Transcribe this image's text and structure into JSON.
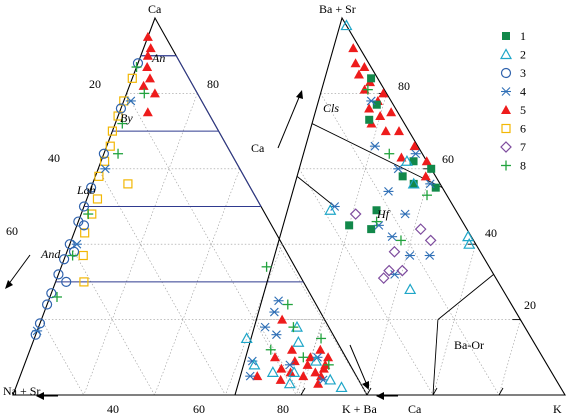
{
  "chart_data": [
    {
      "type": "scatter",
      "subtype": "ternary",
      "apices": {
        "top": "Ca",
        "left": "Na + Sr",
        "right": "K + Ba"
      },
      "ticks": [
        "20",
        "40",
        "60",
        "40",
        "60",
        "80",
        "80"
      ],
      "fields": [
        "An",
        "By",
        "Lab",
        "And"
      ],
      "points": [
        {
          "series": "5",
          "ca": 95,
          "na": 5,
          "k": 0
        },
        {
          "series": "5",
          "ca": 92,
          "na": 6,
          "k": 2
        },
        {
          "series": "5",
          "ca": 90,
          "na": 8,
          "k": 2
        },
        {
          "series": "5",
          "ca": 87,
          "na": 10,
          "k": 3
        },
        {
          "series": "5",
          "ca": 84,
          "na": 11,
          "k": 5
        },
        {
          "series": "5",
          "ca": 82,
          "na": 14,
          "k": 4
        },
        {
          "series": "5",
          "ca": 80,
          "na": 12,
          "k": 8
        },
        {
          "series": "5",
          "ca": 75,
          "na": 17,
          "k": 8
        },
        {
          "series": "5",
          "ca": 20,
          "na": 12,
          "k": 68
        },
        {
          "series": "5",
          "ca": 12,
          "na": 14,
          "k": 74
        },
        {
          "series": "5",
          "ca": 10,
          "na": 10,
          "k": 80
        },
        {
          "series": "5",
          "ca": 8,
          "na": 12,
          "k": 80
        },
        {
          "series": "5",
          "ca": 7,
          "na": 8,
          "k": 85
        },
        {
          "series": "5",
          "ca": 6,
          "na": 11,
          "k": 83
        },
        {
          "series": "5",
          "ca": 5,
          "na": 15,
          "k": 80
        },
        {
          "series": "5",
          "ca": 9,
          "na": 15,
          "k": 76
        },
        {
          "series": "5",
          "ca": 4,
          "na": 22,
          "k": 74
        },
        {
          "series": "5",
          "ca": 7,
          "na": 20,
          "k": 73
        },
        {
          "series": "5",
          "ca": 10,
          "na": 20,
          "k": 70
        },
        {
          "series": "5",
          "ca": 5,
          "na": 10,
          "k": 85
        },
        {
          "series": "5",
          "ca": 10,
          "na": 5,
          "k": 85
        },
        {
          "series": "5",
          "ca": 12,
          "na": 6,
          "k": 82
        },
        {
          "series": "5",
          "ca": 5,
          "na": 28,
          "k": 67
        },
        {
          "series": "5",
          "ca": 6,
          "na": 18,
          "k": 76
        },
        {
          "series": "5",
          "ca": 8,
          "na": 7,
          "k": 85
        },
        {
          "series": "5",
          "ca": 3,
          "na": 12,
          "k": 85
        },
        {
          "series": "6",
          "ca": 84,
          "na": 16,
          "k": 0
        },
        {
          "series": "6",
          "ca": 78,
          "na": 22,
          "k": 0
        },
        {
          "series": "6",
          "ca": 74,
          "na": 26,
          "k": 0
        },
        {
          "series": "6",
          "ca": 70,
          "na": 30,
          "k": 0
        },
        {
          "series": "6",
          "ca": 66,
          "na": 33,
          "k": 1
        },
        {
          "series": "6",
          "ca": 62,
          "na": 37,
          "k": 1
        },
        {
          "series": "6",
          "ca": 58,
          "na": 41,
          "k": 1
        },
        {
          "series": "6",
          "ca": 52,
          "na": 45,
          "k": 3
        },
        {
          "series": "6",
          "ca": 48,
          "na": 49,
          "k": 3
        },
        {
          "series": "6",
          "ca": 43,
          "na": 54,
          "k": 3
        },
        {
          "series": "6",
          "ca": 37,
          "na": 58,
          "k": 5
        },
        {
          "series": "6",
          "ca": 30,
          "na": 62,
          "k": 8
        },
        {
          "series": "6",
          "ca": 56,
          "na": 34,
          "k": 10
        },
        {
          "series": "3",
          "ca": 88,
          "na": 12,
          "k": 0
        },
        {
          "series": "3",
          "ca": 76,
          "na": 24,
          "k": 0
        },
        {
          "series": "3",
          "ca": 64,
          "na": 36,
          "k": 0
        },
        {
          "series": "3",
          "ca": 55,
          "na": 45,
          "k": 0
        },
        {
          "series": "3",
          "ca": 50,
          "na": 50,
          "k": 0
        },
        {
          "series": "3",
          "ca": 46,
          "na": 54,
          "k": 0
        },
        {
          "series": "3",
          "ca": 40,
          "na": 60,
          "k": 0
        },
        {
          "series": "3",
          "ca": 36,
          "na": 64,
          "k": 0
        },
        {
          "series": "3",
          "ca": 32,
          "na": 68,
          "k": 0
        },
        {
          "series": "3",
          "ca": 27,
          "na": 73,
          "k": 0
        },
        {
          "series": "3",
          "ca": 24,
          "na": 76,
          "k": 0
        },
        {
          "series": "3",
          "ca": 19,
          "na": 81,
          "k": 0
        },
        {
          "series": "3",
          "ca": 16,
          "na": 84,
          "k": 0
        },
        {
          "series": "3",
          "ca": 45,
          "na": 53,
          "k": 2
        },
        {
          "series": "3",
          "ca": 38,
          "na": 60,
          "k": 2
        },
        {
          "series": "3",
          "ca": 30,
          "na": 67,
          "k": 3
        },
        {
          "series": "4",
          "ca": 78,
          "na": 20,
          "k": 2
        },
        {
          "series": "4",
          "ca": 60,
          "na": 38,
          "k": 2
        },
        {
          "series": "4",
          "ca": 40,
          "na": 58,
          "k": 2
        },
        {
          "series": "4",
          "ca": 17,
          "na": 83,
          "k": 0
        },
        {
          "series": "4",
          "ca": 25,
          "na": 10,
          "k": 65
        },
        {
          "series": "4",
          "ca": 22,
          "na": 13,
          "k": 65
        },
        {
          "series": "4",
          "ca": 18,
          "na": 18,
          "k": 64
        },
        {
          "series": "4",
          "ca": 9,
          "na": 27,
          "k": 64
        },
        {
          "series": "4",
          "ca": 8,
          "na": 17,
          "k": 75
        },
        {
          "series": "4",
          "ca": 10,
          "na": 8,
          "k": 82
        },
        {
          "series": "4",
          "ca": 4,
          "na": 10,
          "k": 86
        },
        {
          "series": "4",
          "ca": 5,
          "na": 30,
          "k": 65
        },
        {
          "series": "4",
          "ca": 16,
          "na": 16,
          "k": 68
        },
        {
          "series": "2",
          "ca": 8,
          "na": 27,
          "k": 65
        },
        {
          "series": "2",
          "ca": 3,
          "na": 20,
          "k": 77
        },
        {
          "series": "2",
          "ca": 15,
          "na": 25,
          "k": 60
        },
        {
          "series": "2",
          "ca": 6,
          "na": 17,
          "k": 77
        },
        {
          "series": "2",
          "ca": 4,
          "na": 8,
          "k": 88
        },
        {
          "series": "2",
          "ca": 14,
          "na": 11,
          "k": 75
        },
        {
          "series": "2",
          "ca": 18,
          "na": 9,
          "k": 73
        },
        {
          "series": "2",
          "ca": 9,
          "na": 9,
          "k": 82
        },
        {
          "series": "2",
          "ca": 6,
          "na": 23,
          "k": 71
        },
        {
          "series": "2",
          "ca": 2,
          "na": 6,
          "k": 92
        },
        {
          "series": "8",
          "ca": 87,
          "na": 13,
          "k": 0
        },
        {
          "series": "8",
          "ca": 80,
          "na": 15,
          "k": 5
        },
        {
          "series": "8",
          "ca": 72,
          "na": 26,
          "k": 2
        },
        {
          "series": "8",
          "ca": 64,
          "na": 32,
          "k": 4
        },
        {
          "series": "8",
          "ca": 48,
          "na": 50,
          "k": 2
        },
        {
          "series": "8",
          "ca": 37,
          "na": 61,
          "k": 2
        },
        {
          "series": "8",
          "ca": 26,
          "na": 72,
          "k": 2
        },
        {
          "series": "8",
          "ca": 34,
          "na": 8,
          "k": 58
        },
        {
          "series": "8",
          "ca": 24,
          "na": 8,
          "k": 68
        },
        {
          "series": "8",
          "ca": 18,
          "na": 10,
          "k": 72
        },
        {
          "series": "8",
          "ca": 10,
          "na": 12,
          "k": 78
        },
        {
          "series": "8",
          "ca": 8,
          "na": 6,
          "k": 86
        },
        {
          "series": "8",
          "ca": 12,
          "na": 20,
          "k": 68
        },
        {
          "series": "8",
          "ca": 15,
          "na": 4,
          "k": 81
        }
      ]
    },
    {
      "type": "scatter",
      "subtype": "ternary",
      "apices": {
        "top": "Ba + Sr",
        "left": "Ca",
        "right": "K"
      },
      "ticks": [
        "80",
        "60",
        "40",
        "20"
      ],
      "fields": [
        "Cls",
        "Hf",
        "Ba-Or"
      ],
      "points": [
        {
          "series": "5",
          "ba": 92,
          "ca": 2,
          "k": 6
        },
        {
          "series": "5",
          "ba": 88,
          "ca": 4,
          "k": 8
        },
        {
          "series": "5",
          "ba": 85,
          "ca": 5,
          "k": 10
        },
        {
          "series": "5",
          "ba": 87,
          "ca": 2,
          "k": 11
        },
        {
          "series": "5",
          "ba": 83,
          "ca": 3,
          "k": 14
        },
        {
          "series": "5",
          "ba": 81,
          "ca": 6,
          "k": 13
        },
        {
          "series": "5",
          "ba": 80,
          "ca": 1,
          "k": 19
        },
        {
          "series": "5",
          "ba": 78,
          "ca": 4,
          "k": 18
        },
        {
          "series": "5",
          "ba": 76,
          "ca": 8,
          "k": 16
        },
        {
          "series": "5",
          "ba": 74,
          "ca": 6,
          "k": 20
        },
        {
          "series": "5",
          "ba": 75,
          "ca": 2,
          "k": 23
        },
        {
          "series": "5",
          "ba": 72,
          "ca": 10,
          "k": 18
        },
        {
          "series": "5",
          "ba": 70,
          "ca": 7,
          "k": 23
        },
        {
          "series": "5",
          "ba": 70,
          "ca": 3,
          "k": 27
        },
        {
          "series": "5",
          "ba": 66,
          "ca": 1,
          "k": 33
        },
        {
          "series": "5",
          "ba": 62,
          "ca": 0,
          "k": 38
        },
        {
          "series": "5",
          "ba": 58,
          "ca": 3,
          "k": 39
        },
        {
          "series": "5",
          "ba": 63,
          "ca": 7,
          "k": 30
        },
        {
          "series": "1",
          "ba": 84,
          "ca": 2,
          "k": 14
        },
        {
          "series": "1",
          "ba": 77,
          "ca": 5,
          "k": 18
        },
        {
          "series": "1",
          "ba": 73,
          "ca": 10,
          "k": 17
        },
        {
          "series": "1",
          "ba": 62,
          "ca": 4,
          "k": 34
        },
        {
          "series": "1",
          "ba": 58,
          "ca": 10,
          "k": 32
        },
        {
          "series": "1",
          "ba": 56,
          "ca": 8,
          "k": 36
        },
        {
          "series": "1",
          "ba": 60,
          "ca": 0,
          "k": 40
        },
        {
          "series": "1",
          "ba": 55,
          "ca": 2,
          "k": 43
        },
        {
          "series": "1",
          "ba": 49,
          "ca": 24,
          "k": 27
        },
        {
          "series": "1",
          "ba": 45,
          "ca": 35,
          "k": 20
        },
        {
          "series": "1",
          "ba": 44,
          "ca": 29,
          "k": 27
        },
        {
          "series": "4",
          "ba": 78,
          "ca": 6,
          "k": 16
        },
        {
          "series": "4",
          "ba": 66,
          "ca": 13,
          "k": 21
        },
        {
          "series": "4",
          "ba": 64,
          "ca": 2,
          "k": 34
        },
        {
          "series": "4",
          "ba": 60,
          "ca": 10,
          "k": 30
        },
        {
          "series": "4",
          "ba": 56,
          "ca": 3,
          "k": 41
        },
        {
          "series": "4",
          "ba": 54,
          "ca": 17,
          "k": 29
        },
        {
          "series": "4",
          "ba": 50,
          "ca": 36,
          "k": 14
        },
        {
          "series": "4",
          "ba": 45,
          "ca": 26,
          "k": 29
        },
        {
          "series": "4",
          "ba": 42,
          "ca": 24,
          "k": 34
        },
        {
          "series": "4",
          "ba": 37,
          "ca": 22,
          "k": 41
        },
        {
          "series": "4",
          "ba": 37,
          "ca": 16,
          "k": 47
        },
        {
          "series": "4",
          "ba": 32,
          "ca": 30,
          "k": 38
        },
        {
          "series": "4",
          "ba": 48,
          "ca": 16,
          "k": 36
        },
        {
          "series": "8",
          "ba": 81,
          "ca": 5,
          "k": 14
        },
        {
          "series": "8",
          "ba": 64,
          "ca": 10,
          "k": 26
        },
        {
          "series": "8",
          "ba": 46,
          "ca": 26,
          "k": 28
        },
        {
          "series": "8",
          "ba": 41,
          "ca": 22,
          "k": 37
        },
        {
          "series": "8",
          "ba": 53,
          "ca": 6,
          "k": 41
        },
        {
          "series": "2",
          "ba": 98,
          "ca": 0,
          "k": 2
        },
        {
          "series": "2",
          "ba": 62,
          "ca": 6,
          "k": 32
        },
        {
          "series": "2",
          "ba": 56,
          "ca": 8,
          "k": 36
        },
        {
          "series": "2",
          "ba": 49,
          "ca": 38,
          "k": 13
        },
        {
          "series": "2",
          "ba": 28,
          "ca": 28,
          "k": 44
        },
        {
          "series": "2",
          "ba": 42,
          "ca": 1,
          "k": 57
        },
        {
          "series": "2",
          "ba": 40,
          "ca": 2,
          "k": 58
        },
        {
          "series": "7",
          "ba": 48,
          "ca": 31,
          "k": 21
        },
        {
          "series": "7",
          "ba": 44,
          "ca": 14,
          "k": 42
        },
        {
          "series": "7",
          "ba": 38,
          "ca": 26,
          "k": 36
        },
        {
          "series": "7",
          "ba": 33,
          "ca": 31,
          "k": 36
        },
        {
          "series": "7",
          "ba": 33,
          "ca": 27,
          "k": 40
        },
        {
          "series": "7",
          "ba": 31,
          "ca": 34,
          "k": 35
        },
        {
          "series": "7",
          "ba": 41,
          "ca": 13,
          "k": 46
        }
      ]
    }
  ],
  "legend": {
    "entries": [
      {
        "label": "1",
        "marker": "square-filled",
        "color": "#12884a"
      },
      {
        "label": "2",
        "marker": "triangle-open",
        "color": "#1fa6c8"
      },
      {
        "label": "3",
        "marker": "circle-open",
        "color": "#2f62ad"
      },
      {
        "label": "4",
        "marker": "asterisk",
        "color": "#2f6fb6"
      },
      {
        "label": "5",
        "marker": "triangle-filled",
        "color": "#ee1c1c"
      },
      {
        "label": "6",
        "marker": "square-open",
        "color": "#f2b705"
      },
      {
        "label": "7",
        "marker": "diamond-open",
        "color": "#7e4c9e"
      },
      {
        "label": "8",
        "marker": "plus",
        "color": "#22a33e"
      }
    ]
  },
  "bottom_axis": {
    "label_left": "Na + Sr",
    "label_k": "K + Ba",
    "label_ca": "Ca",
    "label_end": "K",
    "ticks": [
      "40",
      "60",
      "80"
    ]
  },
  "colors": {
    "field_lines": "#2f3a8f",
    "right_triangle_blue": "#3b3f96"
  }
}
